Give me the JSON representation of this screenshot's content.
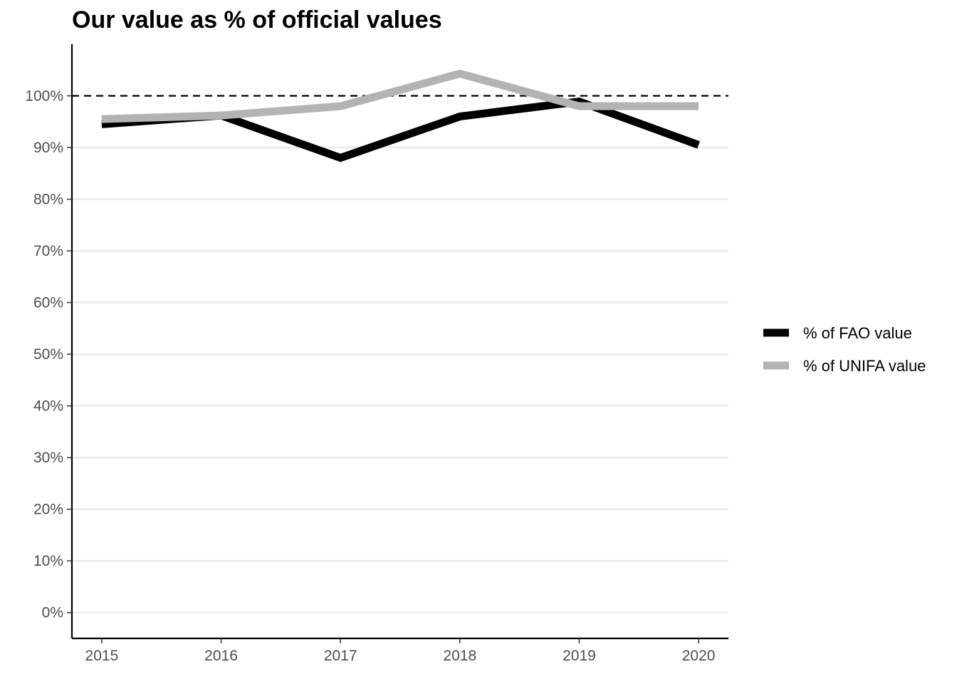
{
  "chart_data": {
    "type": "line",
    "title": "Our value as % of official values",
    "x": [
      2015,
      2016,
      2017,
      2018,
      2019,
      2020
    ],
    "x_tick_labels": [
      "2015",
      "2016",
      "2017",
      "2018",
      "2019",
      "2020"
    ],
    "y_ticks": [
      0,
      10,
      20,
      30,
      40,
      50,
      60,
      70,
      80,
      90,
      100
    ],
    "y_tick_labels": [
      "0%",
      "10%",
      "20%",
      "30%",
      "40%",
      "50%",
      "60%",
      "70%",
      "80%",
      "90%",
      "100%"
    ],
    "ylim": [
      -5,
      110
    ],
    "xlim": [
      2014.75,
      2020.25
    ],
    "reference_line": {
      "y": 100,
      "style": "dashed",
      "color": "#000000"
    },
    "grid": "horizontal major",
    "legend_position": "right",
    "series": [
      {
        "name": "% of FAO value",
        "color": "#000000",
        "values": [
          94.5,
          96.2,
          88,
          96,
          98.9,
          90.5
        ]
      },
      {
        "name": "% of UNIFA value",
        "color": "#b3b3b3",
        "values": [
          95.5,
          96.2,
          98,
          104.3,
          98,
          98
        ]
      }
    ]
  }
}
